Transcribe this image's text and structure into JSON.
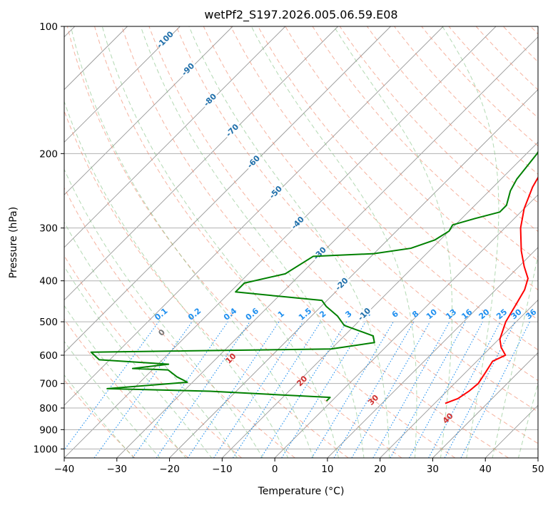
{
  "chart_data": {
    "type": "line",
    "title": "wetPf2_S197.2026.005.06.59.E08",
    "xlabel": "Temperature (°C)",
    "ylabel": "Pressure (hPa)",
    "xlim": [
      -40,
      50
    ],
    "ylim": [
      1050,
      100
    ],
    "y_scale": "log",
    "x_ticks": [
      -40,
      -30,
      -20,
      -10,
      0,
      10,
      20,
      30,
      40,
      50
    ],
    "y_ticks": [
      100,
      200,
      300,
      400,
      500,
      600,
      700,
      800,
      900,
      1000
    ],
    "grid": true,
    "colors": {
      "temperature": "#ff0000",
      "dewpoint": "#008000",
      "isotherm": "#999999",
      "dry_adiabat": "#f08060",
      "moist_adiabat": "#80c080",
      "mixing_ratio": "#1f8fef",
      "isotherm_label": "#1f6faa",
      "theta_label": "#d03030",
      "theta_label_zero": "#777777"
    },
    "series": [
      {
        "key": "temperature",
        "points": [
          [
            22.0,
            780
          ],
          [
            23.5,
            760
          ],
          [
            24.2,
            730
          ],
          [
            24.5,
            700
          ],
          [
            23.8,
            660
          ],
          [
            23.0,
            620
          ],
          [
            24.3,
            600
          ],
          [
            22.0,
            575
          ],
          [
            20.2,
            550
          ],
          [
            18.0,
            500
          ],
          [
            16.5,
            450
          ],
          [
            15.5,
            420
          ],
          [
            14.0,
            395
          ],
          [
            11.0,
            370
          ],
          [
            7.5,
            340
          ],
          [
            3.0,
            300
          ],
          [
            0.0,
            270
          ],
          [
            -2.5,
            240
          ],
          [
            -3.8,
            220
          ],
          [
            -4.5,
            200
          ],
          [
            -4.6,
            190
          ],
          [
            -3.2,
            175
          ],
          [
            -1.6,
            160
          ],
          [
            1.2,
            145
          ],
          [
            5.0,
            130
          ],
          [
            7.5,
            120
          ],
          [
            11.5,
            112
          ],
          [
            15.0,
            105
          ],
          [
            18.0,
            100
          ]
        ]
      },
      {
        "key": "dewpoint",
        "points": [
          [
            -1.0,
            770
          ],
          [
            -1.0,
            755
          ],
          [
            -25.0,
            730
          ],
          [
            -45.0,
            720
          ],
          [
            -31.0,
            695
          ],
          [
            -34.0,
            675
          ],
          [
            -37.0,
            650
          ],
          [
            -44.0,
            645
          ],
          [
            -38.0,
            630
          ],
          [
            -52.0,
            615
          ],
          [
            -55.0,
            590
          ],
          [
            -10.0,
            580
          ],
          [
            -3.0,
            560
          ],
          [
            -4.5,
            540
          ],
          [
            -12.0,
            510
          ],
          [
            -15.0,
            485
          ],
          [
            -19.0,
            460
          ],
          [
            -21.0,
            445
          ],
          [
            -30.0,
            435
          ],
          [
            -39.0,
            425
          ],
          [
            -39.0,
            405
          ],
          [
            -33.0,
            385
          ],
          [
            -31.0,
            350
          ],
          [
            -20.0,
            345
          ],
          [
            -14.0,
            335
          ],
          [
            -11.0,
            320
          ],
          [
            -10.0,
            305
          ],
          [
            -10.5,
            295
          ],
          [
            -7.5,
            285
          ],
          [
            -4.0,
            275
          ],
          [
            -4.0,
            265
          ],
          [
            -6.0,
            245
          ],
          [
            -7.0,
            230
          ],
          [
            -8.0,
            200
          ],
          [
            -10.0,
            175
          ],
          [
            -12.5,
            160
          ],
          [
            -15.5,
            140
          ],
          [
            -16.0,
            125
          ],
          [
            -17.0,
            110
          ],
          [
            -15.0,
            100
          ]
        ]
      }
    ],
    "isotherm_labels": [
      "-100",
      "-90",
      "-80",
      "-70",
      "-60",
      "-50",
      "-40",
      "-30",
      "-20",
      "-10"
    ],
    "mixing_ratio_labels": [
      "0.1",
      "0.2",
      "0.4",
      "0.6",
      "1",
      "1.5",
      "2",
      "3",
      "4",
      "6",
      "8",
      "10",
      "13",
      "16",
      "20",
      "25",
      "30",
      "36"
    ],
    "theta_labels": [
      "0",
      "10",
      "20",
      "30",
      "40"
    ]
  }
}
